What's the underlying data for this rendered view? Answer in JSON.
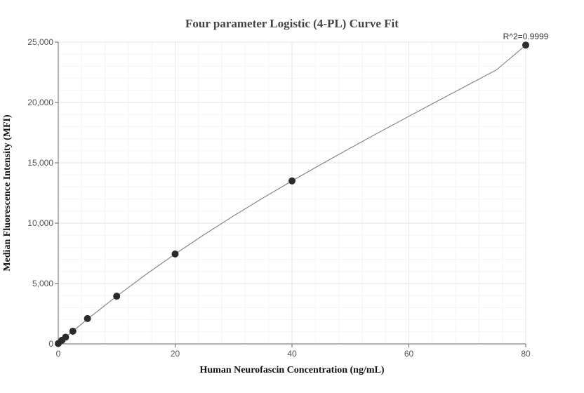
{
  "chart_data": {
    "type": "scatter",
    "title": "Four parameter Logistic (4-PL) Curve Fit",
    "xlabel": "Human Neurofascin Concentration (ng/mL)",
    "ylabel": "Median Fluorescence Intensity (MFI)",
    "xlim": [
      0,
      80
    ],
    "ylim": [
      0,
      25000
    ],
    "x_ticks": [
      0,
      20,
      40,
      60,
      80
    ],
    "y_ticks": [
      0,
      5000,
      10000,
      15000,
      20000,
      25000
    ],
    "x_tick_labels": [
      "0",
      "20",
      "40",
      "60",
      "80"
    ],
    "y_tick_labels": [
      "0",
      "5,000",
      "10,000",
      "15,000",
      "20,000",
      "25,000"
    ],
    "grid": true,
    "legend": "none",
    "annotation": "R^2=0.9999",
    "points": {
      "x": [
        0,
        0.625,
        1.25,
        2.5,
        5,
        10,
        20,
        40,
        80
      ],
      "y": [
        30,
        300,
        550,
        1050,
        2100,
        3950,
        7450,
        13500,
        24750
      ]
    },
    "fit_curve": {
      "x": [
        0,
        1,
        2,
        3,
        5,
        7.5,
        10,
        15,
        20,
        25,
        30,
        35,
        40,
        45,
        50,
        55,
        60,
        65,
        70,
        75,
        80
      ],
      "y": [
        30,
        440,
        850,
        1250,
        2050,
        3000,
        3950,
        5750,
        7450,
        9060,
        10600,
        12080,
        13500,
        14880,
        16230,
        17550,
        18850,
        20140,
        21420,
        22700,
        24750
      ]
    },
    "colors": {
      "point": "#2b2b2b",
      "curve": "#888888",
      "grid": "#e6e6e6",
      "axis": "#666666"
    }
  }
}
